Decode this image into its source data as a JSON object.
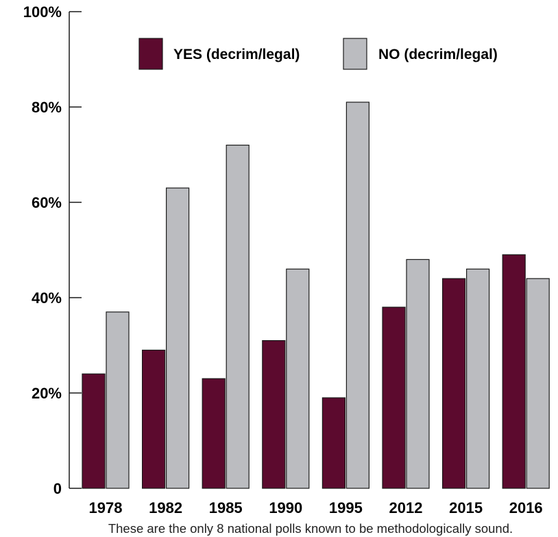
{
  "chart_data": {
    "type": "bar",
    "categories": [
      "1978",
      "1982",
      "1985",
      "1990",
      "1995",
      "2012",
      "2015",
      "2016"
    ],
    "series": [
      {
        "name": "YES (decrim/legal)",
        "color": "#5c0a2e",
        "values": [
          24,
          29,
          23,
          31,
          19,
          38,
          44,
          49
        ]
      },
      {
        "name": "NO (decrim/legal)",
        "color": "#bbbcc0",
        "values": [
          37,
          63,
          72,
          46,
          81,
          48,
          46,
          44
        ]
      }
    ],
    "y_ticks": [
      {
        "value": 0,
        "label": "0"
      },
      {
        "value": 20,
        "label": "20%"
      },
      {
        "value": 40,
        "label": "40%"
      },
      {
        "value": 60,
        "label": "60%"
      },
      {
        "value": 80,
        "label": "80%"
      },
      {
        "value": 100,
        "label": "100%"
      }
    ],
    "ylim": [
      0,
      100
    ],
    "grid": false,
    "legend_position": "top",
    "footnote": "These are the only 8 national polls known to be methodologically sound."
  }
}
